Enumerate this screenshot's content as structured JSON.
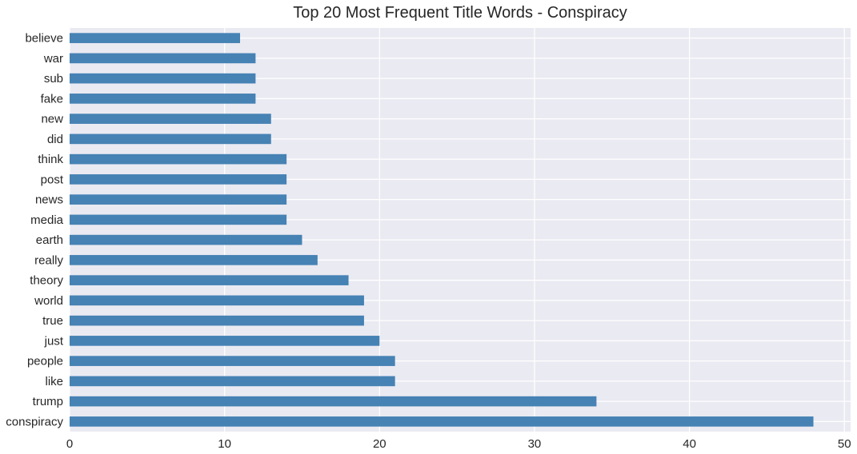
{
  "chart_data": {
    "type": "bar",
    "orientation": "horizontal",
    "title": "Top 20 Most Frequent Title Words - Conspiracy",
    "xlabel": "",
    "ylabel": "",
    "categories": [
      "conspiracy",
      "trump",
      "like",
      "people",
      "just",
      "true",
      "world",
      "theory",
      "really",
      "earth",
      "media",
      "news",
      "post",
      "think",
      "did",
      "new",
      "fake",
      "sub",
      "war",
      "believe"
    ],
    "values": [
      48,
      34,
      21,
      21,
      20,
      19,
      19,
      18,
      16,
      15,
      14,
      14,
      14,
      14,
      13,
      13,
      12,
      12,
      12,
      11
    ],
    "xlim": [
      0,
      50.4
    ],
    "xticks": [
      0,
      10,
      20,
      30,
      40,
      50
    ],
    "grid": true,
    "legend": "none"
  },
  "colors": {
    "bar": "#4682b4",
    "plot_background": "#eaeaf2",
    "grid": "#ffffff"
  }
}
